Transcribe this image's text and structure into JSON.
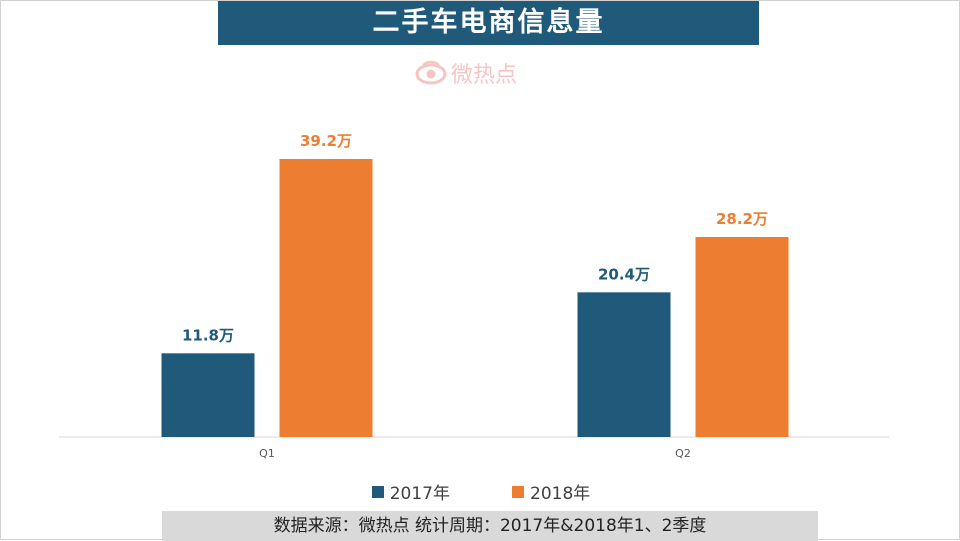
{
  "title": "二手车电商信息量",
  "watermark": {
    "text": "微热点",
    "color": "#e0302b"
  },
  "chart_data": {
    "type": "bar",
    "categories": [
      "Q1",
      "Q2"
    ],
    "series": [
      {
        "name": "2017年",
        "color": "#1f5a7a",
        "values": [
          11.8,
          20.4
        ],
        "labels": [
          "11.8万",
          "20.4万"
        ]
      },
      {
        "name": "2018年",
        "color": "#ed7d31",
        "values": [
          39.2,
          28.2
        ],
        "labels": [
          "39.2万",
          "28.2万"
        ]
      }
    ],
    "ylim": [
      0,
      39.2
    ],
    "grid": false,
    "legend_position": "bottom"
  },
  "source_note": "数据来源：微热点    统计周期：2017年&2018年1、2季度"
}
